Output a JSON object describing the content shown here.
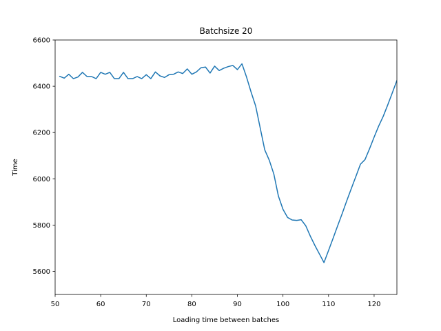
{
  "chart_data": {
    "type": "line",
    "title": "Batchsize 20",
    "xlabel": "Loading time between batches",
    "ylabel": "Time",
    "xlim": [
      50,
      125
    ],
    "ylim": [
      5500,
      6600
    ],
    "xticks": [
      "50",
      "60",
      "70",
      "80",
      "90",
      "100",
      "110",
      "120"
    ],
    "yticks": [
      "5600",
      "5800",
      "6000",
      "6200",
      "6400",
      "6600"
    ],
    "grid": false,
    "line_color": "#1f77b4",
    "series": [
      {
        "name": "Time",
        "x": [
          51,
          52,
          53,
          54,
          55,
          56,
          57,
          58,
          59,
          60,
          61,
          62,
          63,
          64,
          65,
          66,
          67,
          68,
          69,
          70,
          71,
          72,
          73,
          74,
          75,
          76,
          77,
          78,
          79,
          80,
          81,
          82,
          83,
          84,
          85,
          86,
          87,
          88,
          89,
          90,
          91,
          92,
          93,
          94,
          95,
          96,
          97,
          98,
          99,
          100,
          101,
          102,
          103,
          104,
          105,
          106,
          107,
          108,
          109,
          110,
          111,
          112,
          113,
          114,
          115,
          116,
          117,
          118,
          119,
          120,
          121,
          122,
          123,
          124,
          125
        ],
        "values": [
          6443,
          6435,
          6452,
          6433,
          6440,
          6460,
          6442,
          6442,
          6433,
          6460,
          6452,
          6460,
          6433,
          6433,
          6460,
          6433,
          6433,
          6442,
          6433,
          6450,
          6433,
          6462,
          6445,
          6438,
          6450,
          6452,
          6462,
          6455,
          6475,
          6452,
          6462,
          6480,
          6483,
          6457,
          6487,
          6468,
          6478,
          6485,
          6490,
          6472,
          6497,
          6440,
          6375,
          6315,
          6220,
          6125,
          6080,
          6020,
          5925,
          5868,
          5833,
          5822,
          5820,
          5823,
          5797,
          5752,
          5712,
          5675,
          5638,
          5690,
          5743,
          5797,
          5850,
          5905,
          5958,
          6010,
          6063,
          6083,
          6130,
          6180,
          6228,
          6270,
          6320,
          6372,
          6425
        ]
      }
    ]
  }
}
